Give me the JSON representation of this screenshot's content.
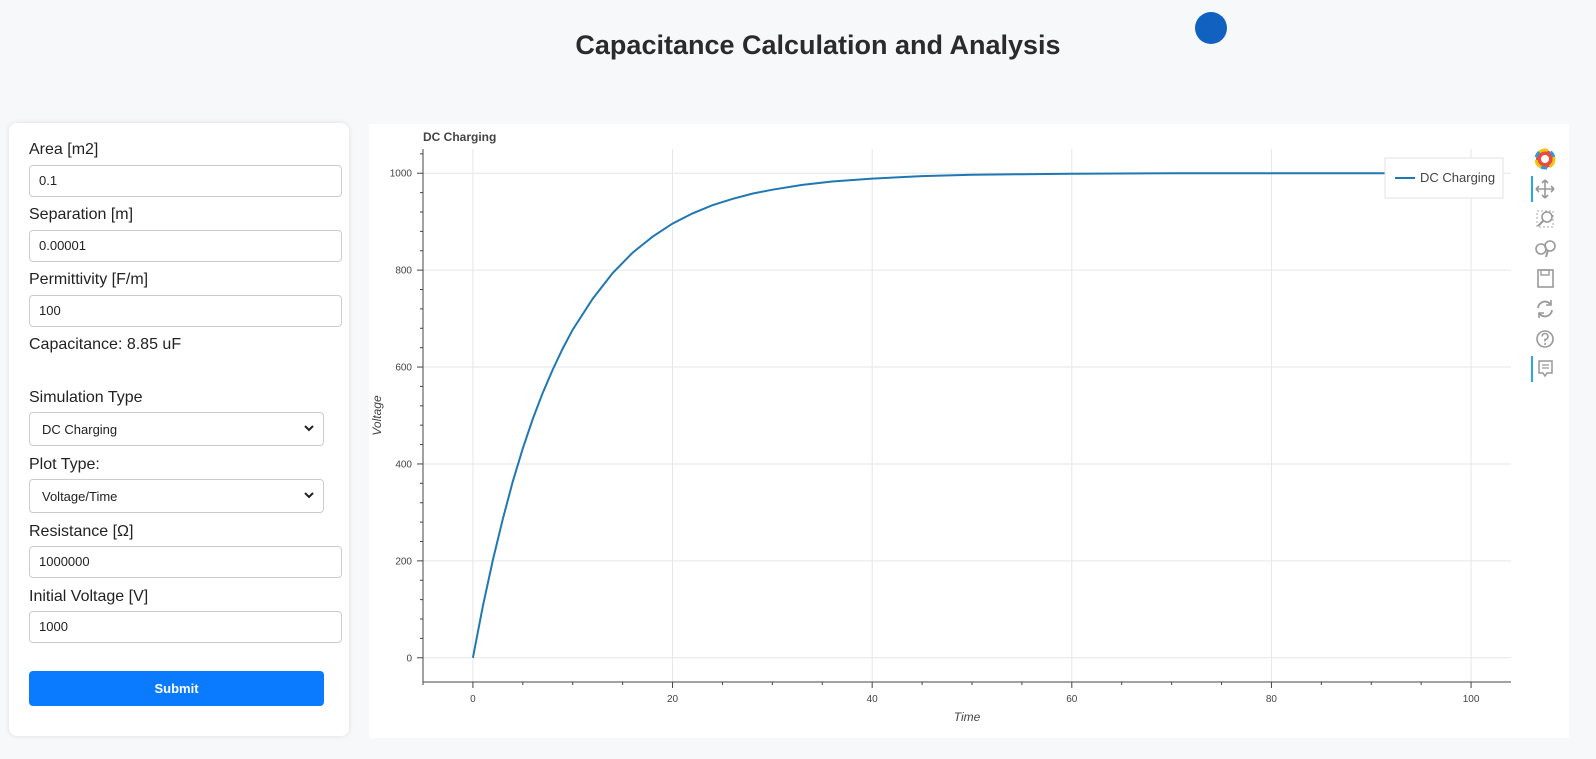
{
  "header": {
    "title": "Capacitance Calculation and Analysis"
  },
  "form": {
    "area": {
      "label": "Area [m2]",
      "value": "0.1"
    },
    "separation": {
      "label": "Separation [m]",
      "value": "0.00001"
    },
    "permittivity": {
      "label": "Permittivity [F/m]",
      "value": "100"
    },
    "capacitance_text": "Capacitance: 8.85 uF",
    "simulation_type": {
      "label": "Simulation Type",
      "selected": "DC Charging"
    },
    "plot_type": {
      "label": "Plot Type:",
      "selected": "Voltage/Time"
    },
    "resistance": {
      "label": "Resistance [Ω]",
      "value": "1000000"
    },
    "initial_voltage": {
      "label": "Initial Voltage [V]",
      "value": "1000"
    },
    "submit_label": "Submit"
  },
  "toolbar": {
    "icons": [
      "bokeh-logo-icon",
      "pan-icon",
      "box-zoom-icon",
      "wheel-zoom-icon",
      "save-icon",
      "reset-icon",
      "help-icon",
      "hover-icon"
    ]
  },
  "colors": {
    "accent": "#0a7bff",
    "line": "#1f77b4",
    "dot": "#1162c0"
  },
  "chart_data": {
    "type": "line",
    "title": "DC Charging",
    "xlabel": "Time",
    "ylabel": "Voltage",
    "xlim": [
      -5,
      104
    ],
    "ylim": [
      -50,
      1050
    ],
    "x_ticks": [
      0,
      20,
      40,
      60,
      80,
      100
    ],
    "y_ticks": [
      0,
      200,
      400,
      600,
      800,
      1000
    ],
    "grid": true,
    "legend_position": "top-right",
    "series": [
      {
        "name": "DC Charging",
        "color": "#1f77b4",
        "x": [
          0,
          1,
          2,
          3,
          4,
          5,
          6,
          7,
          8,
          9,
          10,
          12,
          14,
          16,
          18,
          20,
          22,
          24,
          26,
          28,
          30,
          33,
          36,
          40,
          45,
          50,
          55,
          60,
          70,
          80,
          90,
          100
        ],
        "y": [
          0,
          107,
          202,
          287,
          364,
          432,
          493,
          547,
          595,
          638,
          677,
          741,
          794,
          836,
          869,
          896,
          917,
          934,
          947,
          958,
          966,
          976,
          983,
          989,
          994,
          997,
          998,
          999,
          1000,
          1000,
          1000,
          1000
        ]
      }
    ]
  }
}
